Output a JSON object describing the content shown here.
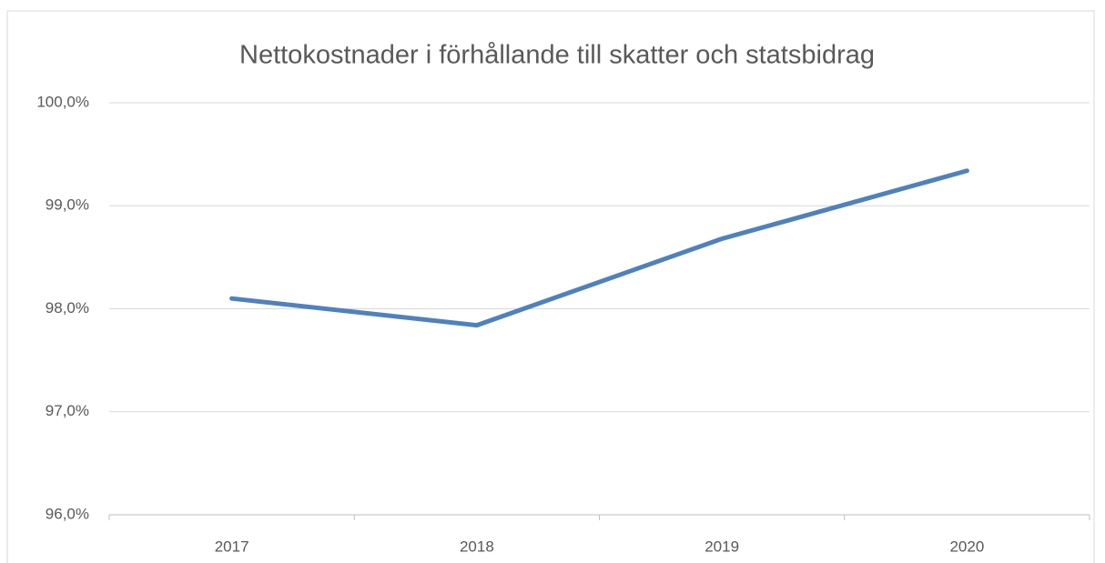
{
  "chart_data": {
    "type": "line",
    "title": "Nettokostnader i förhållande till skatter och statsbidrag",
    "categories": [
      "2017",
      "2018",
      "2019",
      "2020"
    ],
    "series": [
      {
        "name": "Nettokostnader",
        "color": "#4f81bd",
        "values": [
          98.1,
          97.84,
          98.68,
          99.34
        ]
      }
    ],
    "ylim": [
      96,
      100
    ],
    "yticks": [
      {
        "value": 96,
        "label": "96,0%"
      },
      {
        "value": 97,
        "label": "97,0%"
      },
      {
        "value": 98,
        "label": "98,0%"
      },
      {
        "value": 99,
        "label": "99,0%"
      },
      {
        "value": 100,
        "label": "100,0%"
      }
    ],
    "grid": true
  }
}
